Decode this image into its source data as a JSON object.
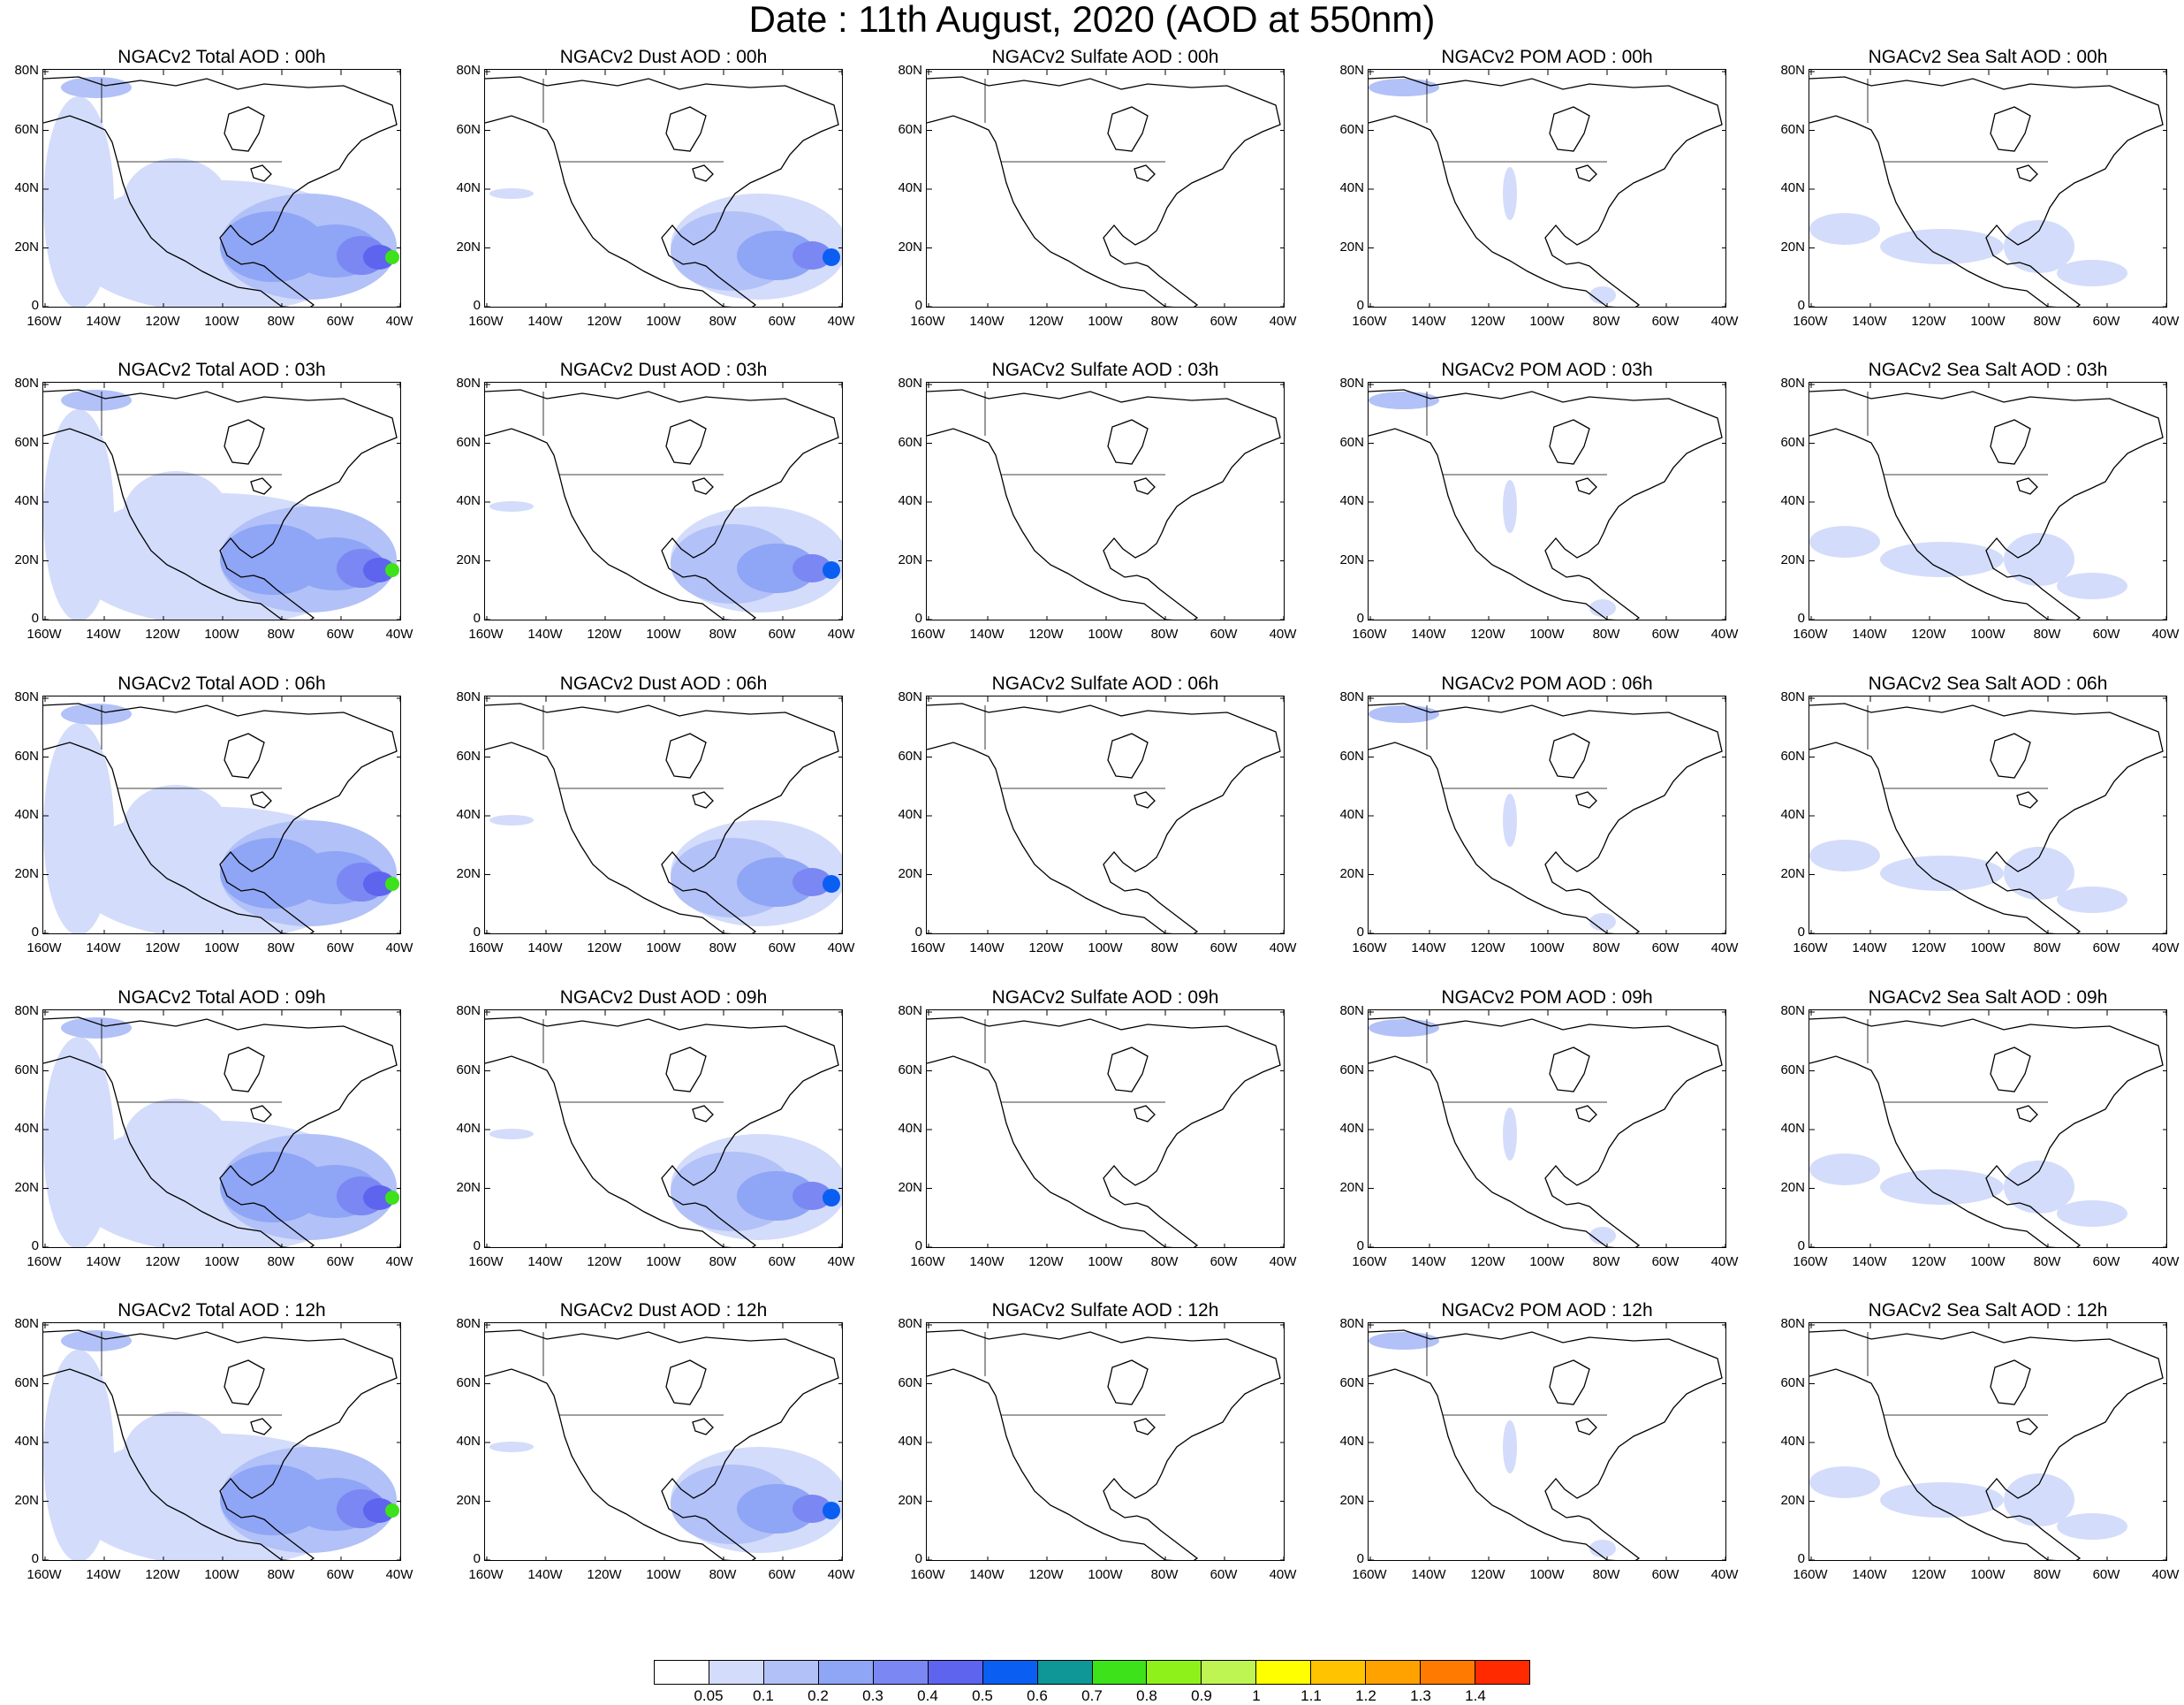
{
  "title": "Date : 11th August, 2020 (AOD at 550nm)",
  "lat_labels": [
    "80N",
    "60N",
    "40N",
    "20N",
    "0"
  ],
  "lon_labels": [
    "160W",
    "140W",
    "120W",
    "100W",
    "80W",
    "60W",
    "40W"
  ],
  "panels": [
    [
      "NGACv2 Total AOD : 00h",
      "NGACv2 Dust AOD : 00h",
      "NGACv2 Sulfate AOD : 00h",
      "NGACv2 POM AOD : 00h",
      "NGACv2 Sea Salt AOD : 00h"
    ],
    [
      "NGACv2 Total AOD : 03h",
      "NGACv2 Dust AOD : 03h",
      "NGACv2 Sulfate AOD : 03h",
      "NGACv2 POM AOD : 03h",
      "NGACv2 Sea Salt AOD : 03h"
    ],
    [
      "NGACv2 Total AOD : 06h",
      "NGACv2 Dust AOD : 06h",
      "NGACv2 Sulfate AOD : 06h",
      "NGACv2 POM AOD : 06h",
      "NGACv2 Sea Salt AOD : 06h"
    ],
    [
      "NGACv2 Total AOD : 09h",
      "NGACv2 Dust AOD : 09h",
      "NGACv2 Sulfate AOD : 09h",
      "NGACv2 POM AOD : 09h",
      "NGACv2 Sea Salt  AOD : 09h"
    ],
    [
      "NGACv2 Total AOD  : 12h",
      "NGACv2 Dust AOD : 12h",
      "NGACv2 Sulfate AOD : 12h",
      "NGACv2 POM  AOD : 12h",
      "NGACv2 Sea Salt  AOD : 12h"
    ]
  ],
  "colorbar": {
    "colors": [
      "#ffffff",
      "#d3dcfa",
      "#b2c1f7",
      "#8fa5f5",
      "#7b87f2",
      "#5e64ee",
      "#0a5ff2",
      "#0f9696",
      "#3ee21a",
      "#8ef21a",
      "#bff552",
      "#ffff00",
      "#ffc300",
      "#ffa200",
      "#ff7a00",
      "#ff2a00"
    ],
    "ticks": [
      "0.05",
      "0.1",
      "0.2",
      "0.3",
      "0.4",
      "0.5",
      "0.6",
      "0.7",
      "0.8",
      "0.9",
      "1",
      "1.1",
      "1.2",
      "1.3",
      "1.4"
    ]
  }
}
